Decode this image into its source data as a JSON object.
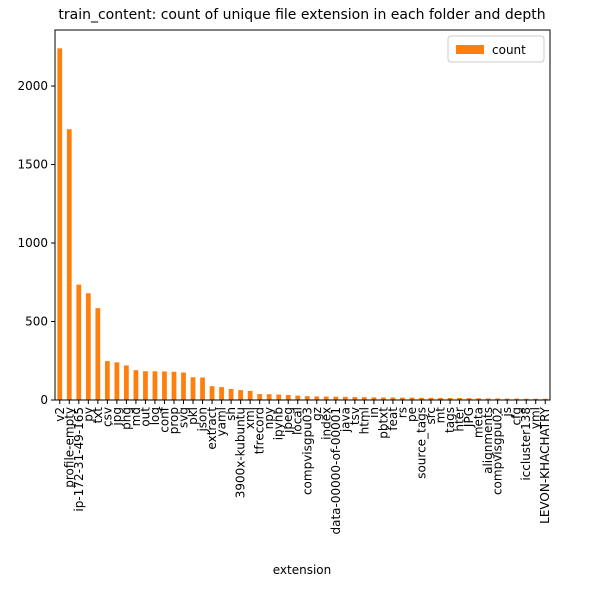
{
  "chart_data": {
    "type": "bar",
    "title": "train_content: count of unique file extension in each folder and depth",
    "xlabel": "extension",
    "categories": [
      "v2",
      "profile-empty",
      "ip-172-31-49-165",
      "py",
      "txt",
      "csv",
      "jpg",
      "png",
      "md",
      "out",
      "log",
      "conf",
      "prop",
      "svg",
      "pkl",
      "json",
      "extract",
      "yaml",
      "sh",
      "3900x-kubuntu",
      "xml",
      "tfrecord",
      "npy",
      "ipynb",
      "jpeg",
      "local",
      "compvisgpu03",
      "gz",
      "index",
      "data-00000-of-00001",
      "java",
      "tsv",
      "html",
      "in",
      "pbtxt",
      "feat",
      "rs",
      "pe",
      "source_tags",
      "src",
      "mt",
      "tags",
      "hter",
      "JPG",
      "meta",
      "alignments",
      "compvisgpu02",
      "js",
      "cfg",
      "iccluster138",
      "yml",
      "LEVON-KHACHATRY"
    ],
    "series": [
      {
        "name": "count",
        "color": "#ff7f0e",
        "values": [
          2240,
          1725,
          735,
          680,
          585,
          248,
          240,
          220,
          190,
          183,
          183,
          182,
          180,
          175,
          145,
          143,
          88,
          82,
          70,
          63,
          58,
          38,
          37,
          35,
          32,
          28,
          25,
          23,
          22,
          21,
          20,
          19,
          18,
          17,
          16,
          16,
          15,
          15,
          14,
          14,
          13,
          13,
          13,
          12,
          11,
          10,
          10,
          9,
          9,
          8,
          8,
          8
        ]
      }
    ],
    "ylim": [
      0,
      2357
    ],
    "yticks": [
      0,
      500,
      1000,
      1500,
      2000
    ],
    "legend": "upper right"
  }
}
